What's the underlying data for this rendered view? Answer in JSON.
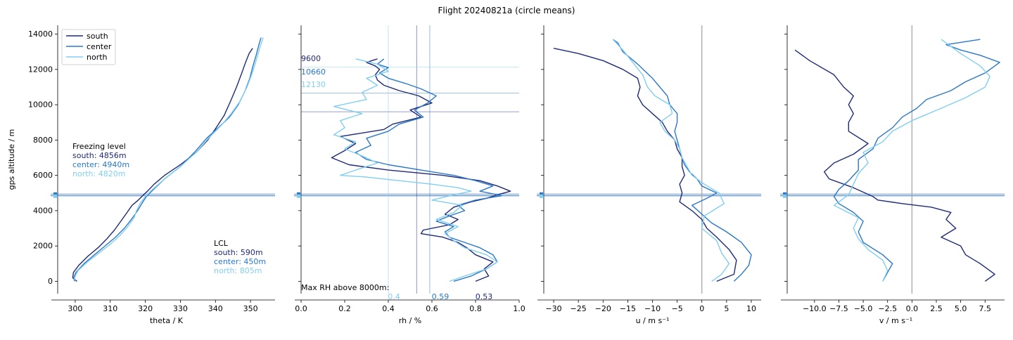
{
  "figure": {
    "title": "Flight 20240821a (circle means)"
  },
  "colors": {
    "south": "#1f2a78",
    "center": "#2a78c8",
    "north": "#80cef0",
    "axis": "#000000",
    "ref_line": "#a0a0a0"
  },
  "chart_data": [
    {
      "type": "line",
      "panel": "theta",
      "xlabel": "theta / K",
      "ylabel": "gps altitude / m",
      "xlim": [
        295,
        357
      ],
      "ylim": [
        -700,
        14500
      ],
      "xticks": [
        300,
        310,
        320,
        330,
        340,
        350
      ],
      "xtick_labels": [
        "300",
        "310",
        "320",
        "330",
        "340",
        "350"
      ],
      "yticks": [
        0,
        2000,
        4000,
        6000,
        8000,
        10000,
        12000,
        14000
      ],
      "ytick_labels": [
        "0",
        "2000",
        "4000",
        "6000",
        "8000",
        "10000",
        "12000",
        "14000"
      ],
      "grid": false,
      "legend": {
        "position": "top-left",
        "entries": [
          "south",
          "center",
          "north"
        ]
      },
      "series": [
        {
          "name": "south",
          "color_key": "south",
          "x": [
            300.5,
            299.3,
            299.5,
            301.0,
            303.5,
            306.5,
            309.0,
            311.2,
            313.0,
            314.8,
            316.2,
            318.0,
            319.5,
            320.6,
            322.5,
            325.5,
            330.0,
            334.5,
            337.8,
            340.2,
            342.5,
            344.3,
            346.0,
            347.5,
            348.6,
            349.6,
            350.6
          ],
          "y": [
            0,
            200,
            500,
            900,
            1400,
            1900,
            2400,
            2900,
            3400,
            3900,
            4300,
            4600,
            4900,
            5100,
            5500,
            6000,
            6600,
            7300,
            8000,
            8700,
            9400,
            10200,
            11000,
            11800,
            12400,
            12900,
            13200
          ]
        },
        {
          "name": "center",
          "color_key": "center",
          "x": [
            299.8,
            299.6,
            300.2,
            302.5,
            305.5,
            308.5,
            311.5,
            314.0,
            316.0,
            317.8,
            319.0,
            320.3,
            322.3,
            325.5,
            330.0,
            334.0,
            337.5,
            340.8,
            344.0,
            346.5,
            348.5,
            349.8,
            350.7,
            351.6,
            352.4,
            353.0
          ],
          "y": [
            0,
            200,
            500,
            1000,
            1500,
            2000,
            2500,
            3000,
            3500,
            4000,
            4400,
            4800,
            5200,
            5800,
            6500,
            7300,
            8100,
            8700,
            9300,
            10000,
            10800,
            11500,
            12200,
            12800,
            13400,
            13800
          ]
        },
        {
          "name": "north",
          "color_key": "north",
          "x": [
            300.0,
            299.8,
            300.8,
            303.5,
            306.8,
            310.0,
            312.8,
            315.0,
            316.8,
            317.5,
            318.5,
            320.0,
            322.0,
            325.5,
            330.0,
            334.5,
            338.0,
            341.5,
            344.5,
            347.0,
            349.0,
            350.5,
            351.6,
            352.6,
            353.6
          ],
          "y": [
            0,
            200,
            600,
            1100,
            1600,
            2100,
            2600,
            3100,
            3600,
            4000,
            4400,
            4800,
            5200,
            5800,
            6500,
            7300,
            8100,
            8800,
            9500,
            10200,
            11000,
            11800,
            12500,
            13200,
            13800
          ]
        }
      ],
      "freezing_level": {
        "south": 4856,
        "center": 4940,
        "north": 4820
      },
      "annotations": {
        "freezing_title": "Freezing level",
        "freezing_south": "south: 4856m",
        "freezing_center": "center: 4940m",
        "freezing_north": "north: 4820m",
        "lcl_title": "LCL",
        "lcl_south": "south: 590m",
        "lcl_center": "center: 450m",
        "lcl_north": "north: 805m"
      }
    },
    {
      "type": "line",
      "panel": "rh",
      "xlabel": "rh / %",
      "xlim": [
        0,
        1
      ],
      "ylim": [
        -700,
        14500
      ],
      "xticks": [
        0,
        0.2,
        0.4,
        0.6,
        0.8,
        1.0
      ],
      "xtick_labels": [
        "0.0",
        "0.2",
        "0.4",
        "0.6",
        "0.8",
        "1.0"
      ],
      "yticks": [
        0,
        2000,
        4000,
        6000,
        8000,
        10000,
        12000,
        14000
      ],
      "grid": false,
      "series": [
        {
          "name": "south",
          "color_key": "south",
          "x": [
            0.8,
            0.86,
            0.84,
            0.88,
            0.8,
            0.76,
            0.72,
            0.65,
            0.55,
            0.56,
            0.68,
            0.72,
            0.66,
            0.7,
            0.78,
            0.85,
            0.9,
            0.96,
            0.9,
            0.82,
            0.65,
            0.4,
            0.22,
            0.14,
            0.2,
            0.25,
            0.18,
            0.38,
            0.42,
            0.55,
            0.5,
            0.6,
            0.54,
            0.45,
            0.38,
            0.35,
            0.34,
            0.36,
            0.34,
            0.3,
            0.35
          ],
          "y": [
            0,
            300,
            700,
            1100,
            1500,
            1900,
            2200,
            2500,
            2700,
            2900,
            3200,
            3500,
            3800,
            4200,
            4500,
            4700,
            4900,
            5100,
            5400,
            5700,
            6000,
            6300,
            6600,
            7000,
            7400,
            7800,
            8200,
            8600,
            8900,
            9300,
            9700,
            10100,
            10500,
            10800,
            11100,
            11400,
            11700,
            12000,
            12200,
            12400,
            12600
          ]
        },
        {
          "name": "center",
          "color_key": "center",
          "x": [
            0.7,
            0.78,
            0.85,
            0.9,
            0.88,
            0.82,
            0.75,
            0.68,
            0.66,
            0.7,
            0.62,
            0.68,
            0.75,
            0.72,
            0.8,
            0.92,
            0.82,
            0.88,
            0.8,
            0.7,
            0.55,
            0.4,
            0.3,
            0.25,
            0.32,
            0.3,
            0.4,
            0.45,
            0.56,
            0.52,
            0.58,
            0.62,
            0.55,
            0.48,
            0.4,
            0.36,
            0.4,
            0.35,
            0.38
          ],
          "y": [
            0,
            300,
            700,
            1100,
            1500,
            1900,
            2200,
            2500,
            2800,
            3100,
            3400,
            3700,
            4000,
            4300,
            4600,
            4850,
            5100,
            5400,
            5700,
            6000,
            6300,
            6600,
            6900,
            7300,
            7700,
            8100,
            8500,
            8900,
            9300,
            9700,
            10100,
            10500,
            10900,
            11200,
            11500,
            11800,
            12100,
            12300,
            12600
          ]
        },
        {
          "name": "north",
          "color_key": "north",
          "x": [
            0.68,
            0.75,
            0.85,
            0.9,
            0.85,
            0.75,
            0.7,
            0.66,
            0.72,
            0.62,
            0.7,
            0.74,
            0.6,
            0.7,
            0.78,
            0.72,
            0.6,
            0.45,
            0.3,
            0.18,
            0.25,
            0.35,
            0.28,
            0.2,
            0.25,
            0.15,
            0.2,
            0.18,
            0.28,
            0.15,
            0.3,
            0.28,
            0.35,
            0.3,
            0.4,
            0.35,
            0.25
          ],
          "y": [
            0,
            300,
            700,
            1100,
            1500,
            1900,
            2300,
            2700,
            3100,
            3500,
            3900,
            4300,
            4600,
            4900,
            5100,
            5300,
            5500,
            5700,
            5900,
            6000,
            6300,
            6700,
            7100,
            7500,
            7900,
            8300,
            8700,
            9100,
            9500,
            9900,
            10300,
            10700,
            11100,
            11500,
            11900,
            12300,
            12600
          ]
        }
      ],
      "max_rh_heights": {
        "south": 9600,
        "center": 10660,
        "north": 12130
      },
      "max_rh_values": {
        "south": 0.53,
        "center": 0.59,
        "north": 0.4
      },
      "annotations": {
        "height_south": "9600",
        "height_center": "10660",
        "height_north": "12130",
        "max_rh_title": "Max RH above 8000m:",
        "val_north": "0.4",
        "val_center": "0.59",
        "val_south": "0.53"
      }
    },
    {
      "type": "line",
      "panel": "u",
      "xlabel": "u / m s⁻¹",
      "xlim": [
        -32,
        12
      ],
      "ylim": [
        -700,
        14500
      ],
      "xticks": [
        -30,
        -25,
        -20,
        -15,
        -10,
        -5,
        0,
        5,
        10
      ],
      "xtick_labels": [
        "−30",
        "−25",
        "−20",
        "−15",
        "−10",
        "−5",
        "0",
        "5",
        "10"
      ],
      "yticks": [
        0,
        2000,
        4000,
        6000,
        8000,
        10000,
        12000,
        14000
      ],
      "grid": false,
      "series": [
        {
          "name": "south",
          "color_key": "south",
          "x": [
            3.0,
            6.5,
            7.0,
            5.5,
            3.0,
            1.0,
            0,
            -2,
            -4.5,
            -4,
            -4.5,
            -3.5,
            -4,
            -4,
            -5,
            -5.5,
            -7,
            -8,
            -10,
            -12,
            -13,
            -12.5,
            -13,
            -16,
            -20,
            -25,
            -30
          ],
          "y": [
            0,
            400,
            1200,
            1800,
            2500,
            3000,
            3500,
            4000,
            4500,
            5000,
            5500,
            6000,
            6500,
            7000,
            7500,
            8000,
            8500,
            9000,
            9500,
            10000,
            10500,
            11000,
            11500,
            12000,
            12500,
            12900,
            13200
          ]
        },
        {
          "name": "center",
          "color_key": "center",
          "x": [
            6.5,
            8.0,
            9.5,
            10.0,
            8.0,
            5.0,
            2.0,
            0,
            -2,
            1,
            3,
            0,
            -1,
            -2.5,
            -3.5,
            -4,
            -4.5,
            -5.0,
            -5.5,
            -5,
            -5,
            -6.5,
            -7,
            -8.5,
            -10,
            -13,
            -16,
            -17,
            -18
          ],
          "y": [
            0,
            400,
            900,
            1500,
            2200,
            2800,
            3300,
            3800,
            4300,
            4700,
            5000,
            5400,
            5800,
            6200,
            6600,
            7000,
            7500,
            8000,
            8500,
            9000,
            9500,
            10000,
            10500,
            11000,
            11500,
            12300,
            13000,
            13500,
            13700
          ]
        },
        {
          "name": "north",
          "color_key": "north",
          "x": [
            2.0,
            4.0,
            5.5,
            4.0,
            3.0,
            0,
            0.5,
            4.5,
            3.5,
            0.5,
            -2,
            -3,
            -4,
            -4.5,
            -5.5,
            -7.5,
            -8.5,
            -6,
            -6.5,
            -9.5,
            -11,
            -12,
            -14,
            -16,
            -18
          ],
          "y": [
            0,
            400,
            1000,
            1600,
            2300,
            3000,
            3700,
            4400,
            5000,
            5500,
            6000,
            6500,
            7000,
            7500,
            8000,
            8500,
            9000,
            9500,
            10000,
            10500,
            11000,
            11700,
            12400,
            13100,
            13700
          ]
        }
      ]
    },
    {
      "type": "line",
      "panel": "v",
      "xlabel": "v / m s⁻¹",
      "xlim": [
        -12.8,
        9.5
      ],
      "ylim": [
        -700,
        14500
      ],
      "xticks": [
        -10.0,
        -7.5,
        -5.0,
        -2.5,
        0.0,
        2.5,
        5.0,
        7.5
      ],
      "xtick_labels": [
        "−10.0",
        "−7.5",
        "−5.0",
        "−2.5",
        "0.0",
        "2.5",
        "5.0",
        "7.5"
      ],
      "yticks": [
        0,
        2000,
        4000,
        6000,
        8000,
        10000,
        12000,
        14000
      ],
      "grid": false,
      "series": [
        {
          "name": "south",
          "color_key": "south",
          "x": [
            7.5,
            8.5,
            7.0,
            5.5,
            5.0,
            3.0,
            4.5,
            3.5,
            4.0,
            2.0,
            -1.0,
            -3.5,
            -4.0,
            -6.0,
            -8.5,
            -9.0,
            -8.0,
            -6.0,
            -4.5,
            -6.5,
            -6.5,
            -6.0,
            -6.5,
            -6.0,
            -7.0,
            -8.0,
            -10.5,
            -12.0
          ],
          "y": [
            0,
            400,
            1000,
            1500,
            2000,
            2500,
            3000,
            3500,
            3900,
            4200,
            4400,
            4600,
            4800,
            5300,
            5800,
            6200,
            6700,
            7200,
            7800,
            8500,
            9000,
            9500,
            10000,
            10500,
            11000,
            11700,
            12500,
            13100
          ]
        },
        {
          "name": "center",
          "color_key": "center",
          "x": [
            -3.0,
            -2.5,
            -2.0,
            -3.0,
            -5.0,
            -5.5,
            -5.0,
            -6.0,
            -7.5,
            -8.0,
            -7.5,
            -6.5,
            -5.5,
            -5.5,
            -4.0,
            -3.5,
            -2.0,
            -1.0,
            0.5,
            1.5,
            4.0,
            5.5,
            7.5,
            9.0,
            7.0,
            5.0,
            3.5,
            7.0
          ],
          "y": [
            0,
            500,
            1000,
            1500,
            2200,
            2800,
            3400,
            3900,
            4400,
            4800,
            5200,
            5700,
            6300,
            6900,
            7500,
            8100,
            8700,
            9300,
            9800,
            10300,
            10800,
            11300,
            11800,
            12400,
            12800,
            13100,
            13400,
            13700
          ]
        },
        {
          "name": "north",
          "color_key": "north",
          "x": [
            -3.0,
            -2.5,
            -3.0,
            -4.5,
            -5.5,
            -6.0,
            -5.5,
            -8.0,
            -6.5,
            -6.0,
            -5.5,
            -4.5,
            -5.0,
            -3.0,
            -2.0,
            0.0,
            3.0,
            5.5,
            7.5,
            8.0,
            7.0,
            5.0,
            3.0
          ],
          "y": [
            0,
            600,
            1200,
            1800,
            2400,
            3000,
            3600,
            4300,
            4900,
            5500,
            6100,
            6700,
            7300,
            7900,
            8500,
            9100,
            9800,
            10400,
            11000,
            11600,
            12200,
            12900,
            13700
          ]
        }
      ]
    }
  ]
}
